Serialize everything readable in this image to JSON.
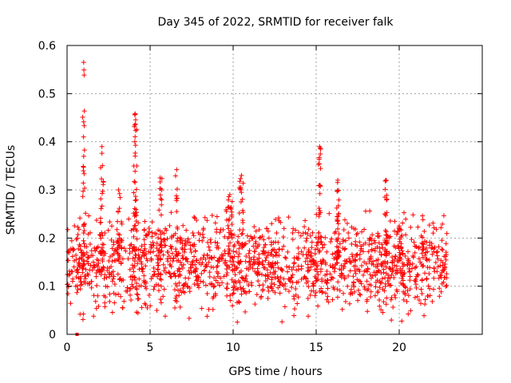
{
  "chart_data": {
    "type": "scatter",
    "title": "Day 345 of 2022, SRMTID for receiver falk",
    "xlabel": "GPS time / hours",
    "ylabel": "SRMTID / TECUs",
    "xlim": [
      0,
      25
    ],
    "ylim": [
      0,
      0.6
    ],
    "x_ticks": [
      0,
      5,
      10,
      15,
      20
    ],
    "y_ticks": [
      0,
      0.1,
      0.2,
      0.3,
      0.4,
      0.5,
      0.6
    ],
    "x_tick_labels": [
      "0",
      "5",
      "10",
      "15",
      "20"
    ],
    "y_tick_labels": [
      "0",
      "0.1",
      "0.2",
      "0.3",
      "0.4",
      "0.5",
      "0.6"
    ],
    "grid": true,
    "marker": "+",
    "point_color": "#ff0000",
    "zero_marker": {
      "x": 0.6,
      "y": 0
    },
    "baseline": {
      "x_start": 0,
      "x_end": 22.9,
      "level": 0.145,
      "noise": 0.045
    },
    "spikes": [
      {
        "x": 1.0,
        "peak": 0.565,
        "width": 0.12,
        "count": 26
      },
      {
        "x": 2.1,
        "peak": 0.39,
        "width": 0.18,
        "count": 24
      },
      {
        "x": 3.1,
        "peak": 0.3,
        "width": 0.2,
        "count": 18
      },
      {
        "x": 4.1,
        "peak": 0.458,
        "width": 0.2,
        "count": 40
      },
      {
        "x": 5.6,
        "peak": 0.325,
        "width": 0.22,
        "count": 18
      },
      {
        "x": 6.6,
        "peak": 0.342,
        "width": 0.15,
        "count": 16
      },
      {
        "x": 9.8,
        "peak": 0.29,
        "width": 0.3,
        "count": 24
      },
      {
        "x": 10.5,
        "peak": 0.33,
        "width": 0.25,
        "count": 24
      },
      {
        "x": 15.2,
        "peak": 0.39,
        "width": 0.15,
        "count": 26
      },
      {
        "x": 16.3,
        "peak": 0.32,
        "width": 0.15,
        "count": 22
      },
      {
        "x": 19.2,
        "peak": 0.32,
        "width": 0.15,
        "count": 26
      },
      {
        "x": 20.0,
        "peak": 0.225,
        "width": 0.25,
        "count": 16
      }
    ],
    "point_count": 1600
  }
}
